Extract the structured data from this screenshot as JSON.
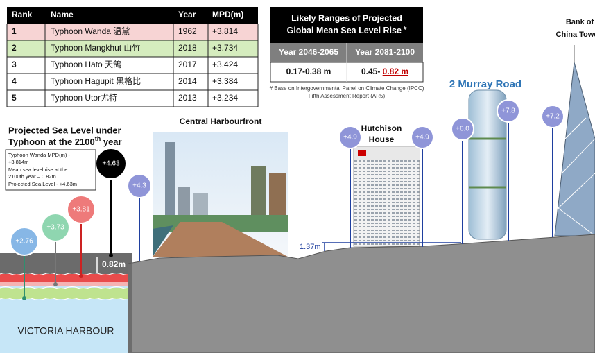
{
  "table": {
    "header": [
      "Rank",
      "Name",
      "Year",
      "MPD(m)"
    ],
    "rows": [
      [
        "1",
        "Typhoon Wanda 温黛",
        "1962",
        "+3.814"
      ],
      [
        "2",
        "Typhoon Mangkhut 山竹",
        "2018",
        "+3.734"
      ],
      [
        "3",
        "Typhoon Hato 天鴿",
        "2017",
        "+3.424"
      ],
      [
        "4",
        "Typhoon Hagupit 黑格比",
        "2014",
        "+3.384"
      ],
      [
        "5",
        "Typhoon Utor尤特",
        "2013",
        "+3.234"
      ]
    ]
  },
  "ranges": {
    "title": [
      "Likely Ranges of Projected",
      "Global Mean Sea Level Rise"
    ],
    "title_mark": "#",
    "columns": [
      "Year 2046-2065",
      "Year 2081-2100"
    ],
    "values": [
      [
        "0.17-0.38 m"
      ],
      [
        "0.45- ",
        "0.82 m"
      ]
    ],
    "footnote": [
      "# Base on Intergovernmental Panel on Climate Change (IPCC)",
      "Fifth Assessment Report (AR5)"
    ]
  },
  "heading": {
    "lines": [
      "Projected Sea Level under",
      "Typhoon at the 2100"
    ],
    "superscript": "th",
    "tail": " year"
  },
  "note": [
    "Typhoon Wanda MPD(m) -",
    "+3.814m",
    "Mean sea level rise at the",
    "2100th year – 0.82m",
    "Projected Sea Level - +4.63m"
  ],
  "levels": [
    "+2.76",
    "+3.73",
    "+3.81",
    "+4.63",
    "+4.3",
    "+4.9",
    "+4.9",
    "+6.0",
    "+7.8",
    "+7.2"
  ],
  "places": [
    "Central Harbourfront",
    "Hutchison",
    "House",
    "2 Murray Road",
    "Bank of",
    "China Towe"
  ],
  "markers": [
    "0.82m",
    "1.37m"
  ],
  "harbour": "VICTORIA HARBOUR"
}
